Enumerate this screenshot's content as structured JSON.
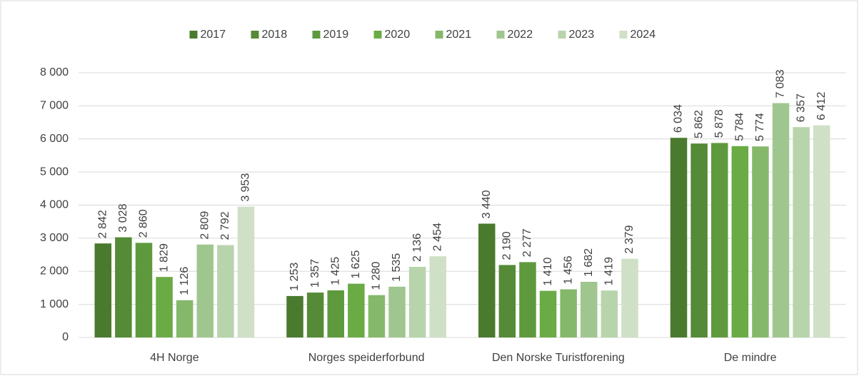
{
  "chart_data": {
    "type": "bar",
    "categories": [
      "4H Norge",
      "Norges speiderforbund",
      "Den Norske Turistforening",
      "De mindre"
    ],
    "series": [
      {
        "name": "2017",
        "color": "#4a7a2e",
        "values": [
          2842,
          1253,
          3440,
          6034
        ],
        "value_labels": [
          "2 842",
          "1 253",
          "3 440",
          "6 034"
        ]
      },
      {
        "name": "2018",
        "color": "#558a36",
        "values": [
          3028,
          1357,
          2190,
          5862
        ],
        "value_labels": [
          "3 028",
          "1 357",
          "2 190",
          "5 862"
        ]
      },
      {
        "name": "2019",
        "color": "#5e9a3d",
        "values": [
          2860,
          1425,
          2277,
          5878
        ],
        "value_labels": [
          "2 860",
          "1 425",
          "2 277",
          "5 878"
        ]
      },
      {
        "name": "2020",
        "color": "#6aab45",
        "values": [
          1829,
          1625,
          1410,
          5784
        ],
        "value_labels": [
          "1 829",
          "1 625",
          "1 410",
          "5 784"
        ]
      },
      {
        "name": "2021",
        "color": "#86b86b",
        "values": [
          1126,
          1280,
          1456,
          5774
        ],
        "value_labels": [
          "1 126",
          "1 280",
          "1 456",
          "5 774"
        ]
      },
      {
        "name": "2022",
        "color": "#a0c690",
        "values": [
          2809,
          1535,
          1682,
          7083
        ],
        "value_labels": [
          "2 809",
          "1 535",
          "1 682",
          "7 083"
        ]
      },
      {
        "name": "2023",
        "color": "#b8d4ac",
        "values": [
          2792,
          2136,
          1419,
          6357
        ],
        "value_labels": [
          "2 792",
          "2 136",
          "1 419",
          "6 357"
        ]
      },
      {
        "name": "2024",
        "color": "#cfe0c6",
        "values": [
          3953,
          2454,
          2379,
          6412
        ],
        "value_labels": [
          "3 953",
          "2 454",
          "2 379",
          "6 412"
        ]
      }
    ],
    "ylim": [
      0,
      8000
    ],
    "yticks": [
      0,
      {
        "value": 1000,
        "label": "1 000"
      },
      {
        "value": 2000,
        "label": "2 000"
      },
      {
        "value": 3000,
        "label": "3 000"
      },
      {
        "value": 4000,
        "label": "4 000"
      },
      {
        "value": 5000,
        "label": "5 000"
      },
      {
        "value": 6000,
        "label": "6 000"
      },
      {
        "value": 7000,
        "label": "7 000"
      },
      {
        "value": 8000,
        "label": "8 000"
      }
    ],
    "grid": true,
    "legend": "top"
  }
}
